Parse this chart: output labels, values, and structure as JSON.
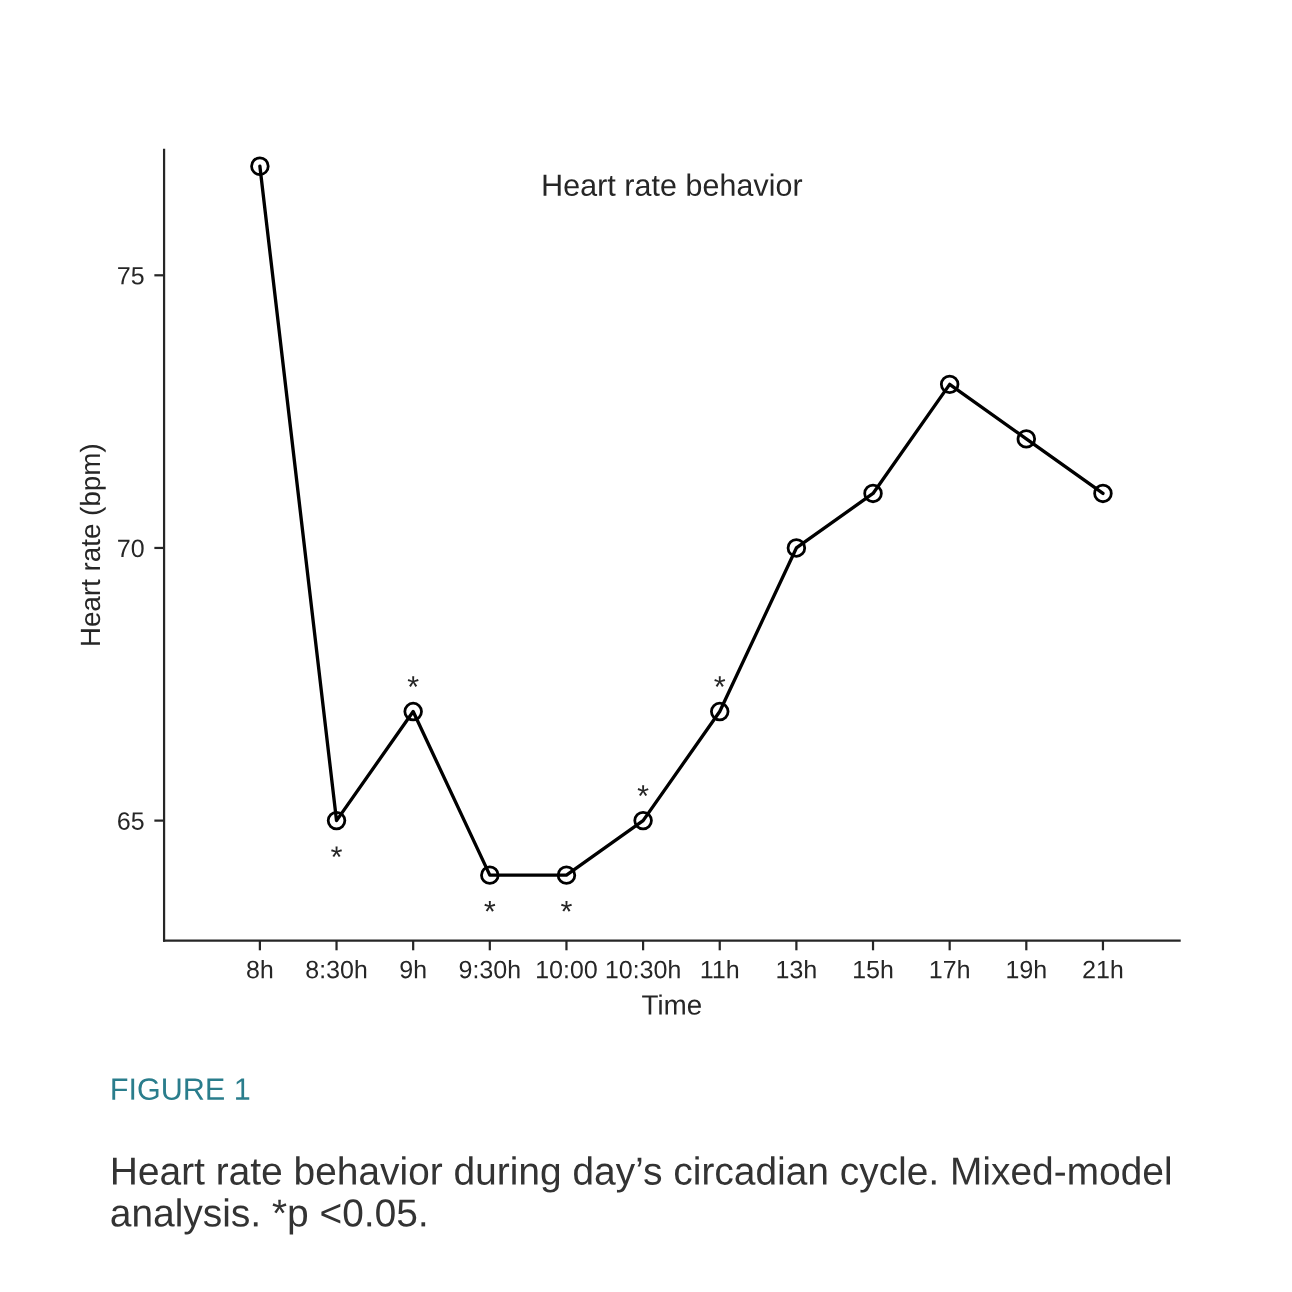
{
  "chart_data": {
    "type": "line",
    "title": "Heart rate behavior",
    "xlabel": "Time",
    "ylabel": "Heart rate (bpm)",
    "categories": [
      "8h",
      "8:30h",
      "9h",
      "9:30h",
      "10:00",
      "10:30h",
      "11h",
      "13h",
      "15h",
      "17h",
      "19h",
      "21h"
    ],
    "series": [
      {
        "color": "#000000",
        "values": [
          77,
          65,
          67,
          64,
          64,
          65,
          67,
          70,
          71,
          73,
          72,
          71
        ]
      }
    ],
    "ylim": [
      62.8,
      77.3
    ],
    "yticks": [
      65,
      70,
      75
    ],
    "marker": "circle",
    "line_style": "solid",
    "grid": false,
    "annotations": [
      {
        "text": "*",
        "x": "8:30h",
        "y": 65
      },
      {
        "text": "*",
        "x": "9h",
        "y": 67
      },
      {
        "text": "*",
        "x": "9:30h",
        "y": 64
      },
      {
        "text": "*",
        "x": "10:00",
        "y": 64
      },
      {
        "text": "*",
        "x": "10:30h",
        "y": 65
      },
      {
        "text": "*",
        "x": "11h",
        "y": 67
      },
      "FIGURE 1",
      "Heart rate behavior during day’s circadian cycle. Mixed-model analysis. *p <0.05."
    ]
  }
}
